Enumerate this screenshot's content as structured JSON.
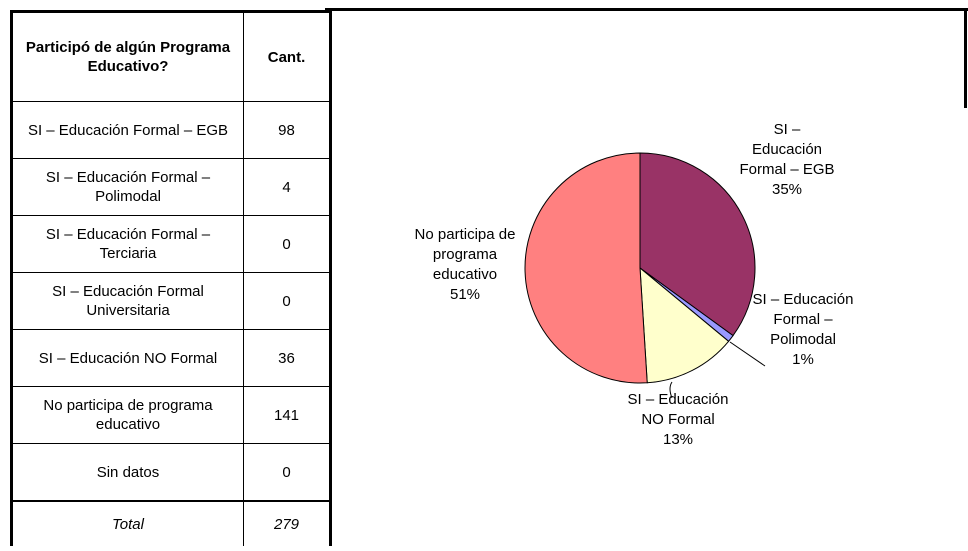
{
  "table": {
    "header": [
      "Participó de algún Programa Educativo?",
      "Cant."
    ],
    "rows": [
      [
        "SI – Educación Formal – EGB",
        98
      ],
      [
        "SI – Educación Formal – Polimodal",
        4
      ],
      [
        "SI – Educación Formal – Terciaria",
        0
      ],
      [
        "SI – Educación Formal Universitaria",
        0
      ],
      [
        "SI – Educación NO Formal",
        36
      ],
      [
        "No participa de programa educativo",
        141
      ],
      [
        "Sin datos",
        0
      ]
    ],
    "total": [
      "Total",
      279
    ]
  },
  "chart_data": {
    "type": "pie",
    "categories": [
      "SI – Educación Formal – EGB",
      "SI – Educación Formal – Polimodal",
      "SI – Educación NO Formal",
      "No participa de programa educativo"
    ],
    "values": [
      35,
      1,
      13,
      51
    ],
    "value_labels": [
      "35%",
      "1%",
      "13%",
      "51%"
    ],
    "colors": [
      "#993366",
      "#9999ff",
      "#ffffcc",
      "#ff8080"
    ]
  }
}
